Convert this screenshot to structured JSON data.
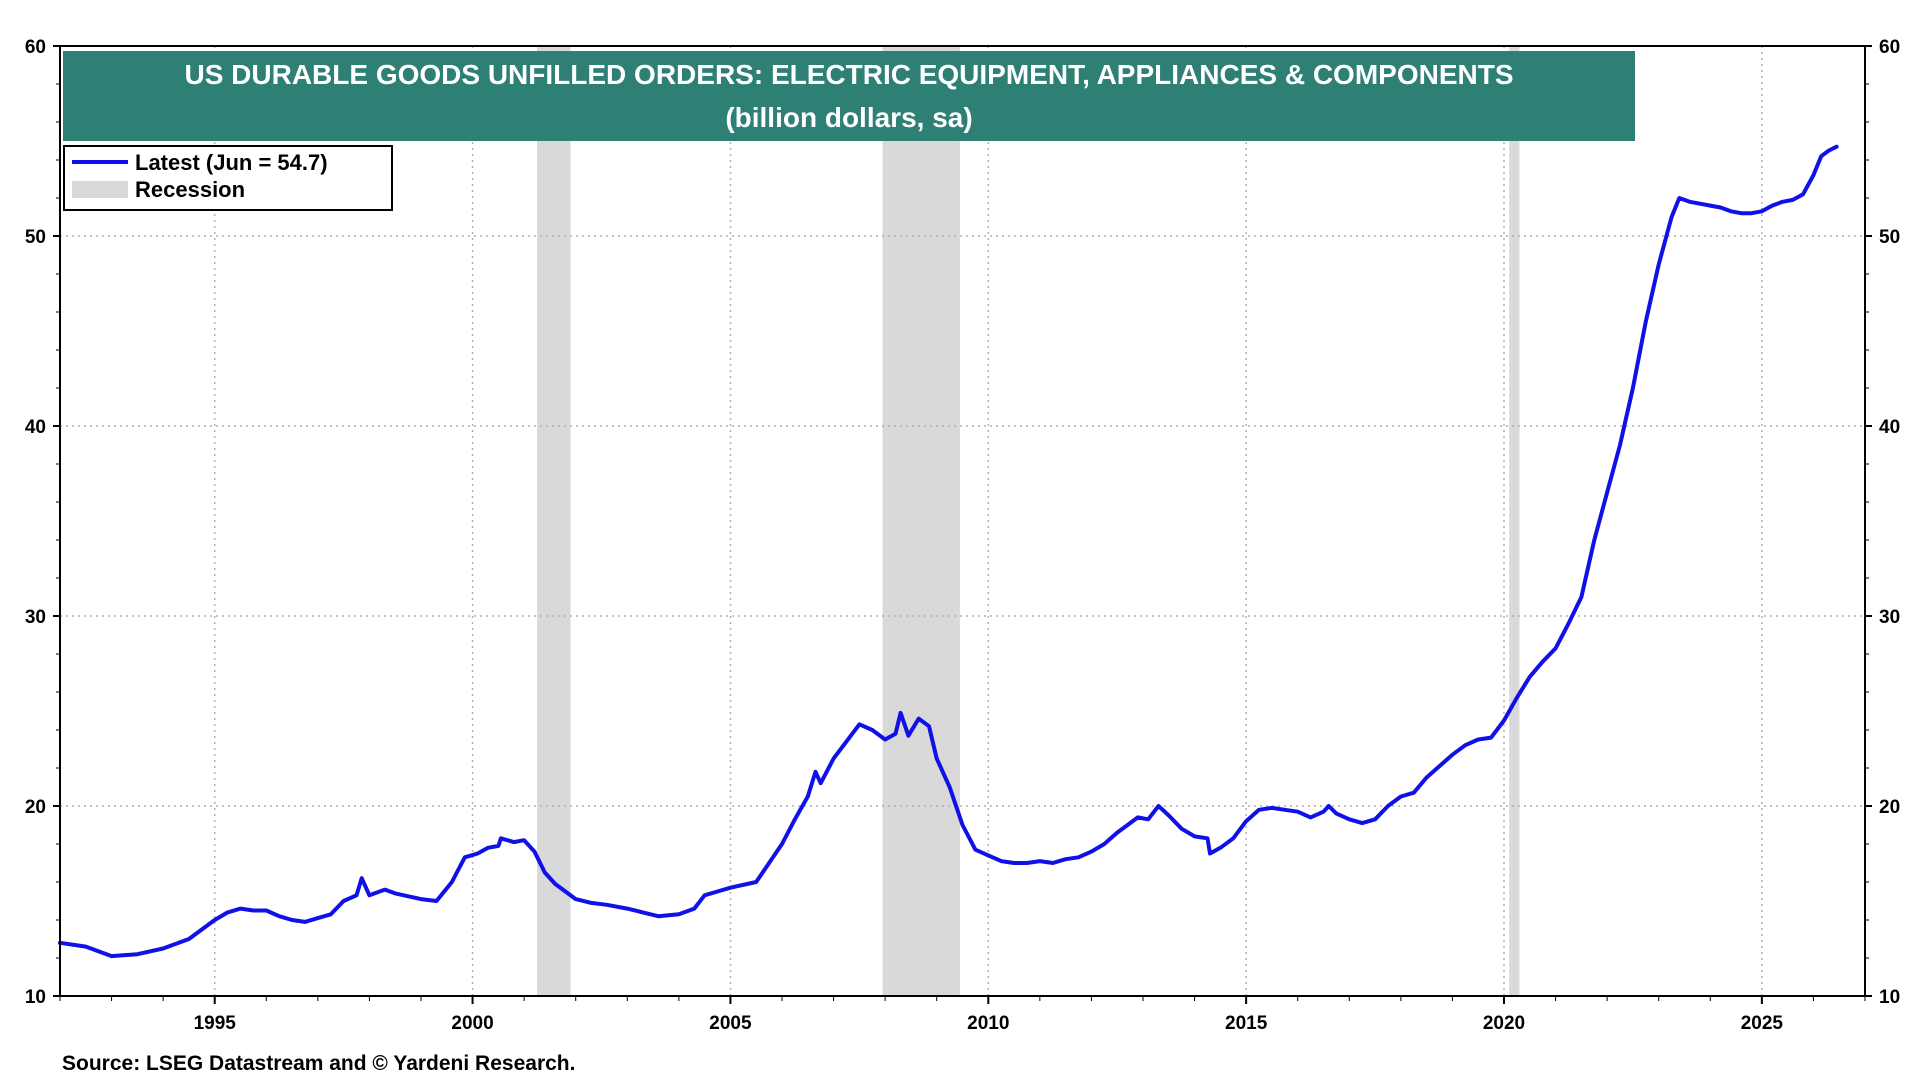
{
  "chart_data": {
    "type": "line",
    "title": "US DURABLE GOODS UNFILLED ORDERS: ELECTRIC EQUIPMENT, APPLIANCES & COMPONENTS",
    "subtitle": "(billion dollars, sa)",
    "source": "Source: LSEG Datastream and © Yardeni Research.",
    "xlim": [
      1992.0,
      2027.0
    ],
    "ylim": [
      10,
      60
    ],
    "y_ticks": [
      10,
      20,
      30,
      40,
      50,
      60
    ],
    "x_ticks": [
      1995,
      2000,
      2005,
      2010,
      2015,
      2020,
      2025
    ],
    "grid": true,
    "legend_position": "top-left",
    "colors": {
      "series": "#1010e8",
      "recession": "#d9d9d9",
      "title_bg": "#2e7f74"
    },
    "series": [
      {
        "name": "Latest (Jun = 54.7)",
        "points": [
          [
            1992.0,
            12.8
          ],
          [
            1992.5,
            12.6
          ],
          [
            1993.0,
            12.1
          ],
          [
            1993.5,
            12.2
          ],
          [
            1994.0,
            12.5
          ],
          [
            1994.5,
            13.0
          ],
          [
            1995.0,
            14.0
          ],
          [
            1995.25,
            14.4
          ],
          [
            1995.5,
            14.6
          ],
          [
            1995.75,
            14.5
          ],
          [
            1996.0,
            14.5
          ],
          [
            1996.25,
            14.2
          ],
          [
            1996.5,
            14.0
          ],
          [
            1996.75,
            13.9
          ],
          [
            1997.0,
            14.1
          ],
          [
            1997.25,
            14.3
          ],
          [
            1997.5,
            15.0
          ],
          [
            1997.75,
            15.3
          ],
          [
            1997.85,
            16.2
          ],
          [
            1998.0,
            15.3
          ],
          [
            1998.3,
            15.6
          ],
          [
            1998.5,
            15.4
          ],
          [
            1999.0,
            15.1
          ],
          [
            1999.3,
            15.0
          ],
          [
            1999.6,
            16.0
          ],
          [
            1999.85,
            17.3
          ],
          [
            2000.1,
            17.5
          ],
          [
            2000.3,
            17.8
          ],
          [
            2000.5,
            17.9
          ],
          [
            2000.55,
            18.3
          ],
          [
            2000.8,
            18.1
          ],
          [
            2001.0,
            18.2
          ],
          [
            2001.2,
            17.6
          ],
          [
            2001.4,
            16.5
          ],
          [
            2001.6,
            15.9
          ],
          [
            2001.8,
            15.5
          ],
          [
            2002.0,
            15.1
          ],
          [
            2002.3,
            14.9
          ],
          [
            2002.6,
            14.8
          ],
          [
            2003.0,
            14.6
          ],
          [
            2003.3,
            14.4
          ],
          [
            2003.6,
            14.2
          ],
          [
            2004.0,
            14.3
          ],
          [
            2004.3,
            14.6
          ],
          [
            2004.5,
            15.3
          ],
          [
            2004.75,
            15.5
          ],
          [
            2005.0,
            15.7
          ],
          [
            2005.5,
            16.0
          ],
          [
            2005.75,
            17.0
          ],
          [
            2006.0,
            18.0
          ],
          [
            2006.25,
            19.3
          ],
          [
            2006.5,
            20.5
          ],
          [
            2006.65,
            21.8
          ],
          [
            2006.75,
            21.2
          ],
          [
            2007.0,
            22.5
          ],
          [
            2007.25,
            23.4
          ],
          [
            2007.5,
            24.3
          ],
          [
            2007.75,
            24.0
          ],
          [
            2008.0,
            23.5
          ],
          [
            2008.2,
            23.8
          ],
          [
            2008.3,
            24.9
          ],
          [
            2008.45,
            23.7
          ],
          [
            2008.65,
            24.6
          ],
          [
            2008.85,
            24.2
          ],
          [
            2009.0,
            22.5
          ],
          [
            2009.25,
            21.0
          ],
          [
            2009.5,
            19.0
          ],
          [
            2009.75,
            17.7
          ],
          [
            2010.0,
            17.4
          ],
          [
            2010.25,
            17.1
          ],
          [
            2010.5,
            17.0
          ],
          [
            2010.75,
            17.0
          ],
          [
            2011.0,
            17.1
          ],
          [
            2011.25,
            17.0
          ],
          [
            2011.5,
            17.2
          ],
          [
            2011.75,
            17.3
          ],
          [
            2012.0,
            17.6
          ],
          [
            2012.25,
            18.0
          ],
          [
            2012.5,
            18.6
          ],
          [
            2012.75,
            19.1
          ],
          [
            2012.9,
            19.4
          ],
          [
            2013.1,
            19.3
          ],
          [
            2013.3,
            20.0
          ],
          [
            2013.5,
            19.5
          ],
          [
            2013.75,
            18.8
          ],
          [
            2014.0,
            18.4
          ],
          [
            2014.25,
            18.3
          ],
          [
            2014.3,
            17.5
          ],
          [
            2014.5,
            17.8
          ],
          [
            2014.75,
            18.3
          ],
          [
            2015.0,
            19.2
          ],
          [
            2015.25,
            19.8
          ],
          [
            2015.5,
            19.9
          ],
          [
            2015.75,
            19.8
          ],
          [
            2016.0,
            19.7
          ],
          [
            2016.25,
            19.4
          ],
          [
            2016.5,
            19.7
          ],
          [
            2016.6,
            20.0
          ],
          [
            2016.75,
            19.6
          ],
          [
            2017.0,
            19.3
          ],
          [
            2017.25,
            19.1
          ],
          [
            2017.5,
            19.3
          ],
          [
            2017.75,
            20.0
          ],
          [
            2018.0,
            20.5
          ],
          [
            2018.25,
            20.7
          ],
          [
            2018.5,
            21.5
          ],
          [
            2018.75,
            22.1
          ],
          [
            2019.0,
            22.7
          ],
          [
            2019.25,
            23.2
          ],
          [
            2019.5,
            23.5
          ],
          [
            2019.75,
            23.6
          ],
          [
            2020.0,
            24.5
          ],
          [
            2020.25,
            25.7
          ],
          [
            2020.5,
            26.8
          ],
          [
            2020.75,
            27.6
          ],
          [
            2021.0,
            28.3
          ],
          [
            2021.25,
            29.6
          ],
          [
            2021.5,
            31.0
          ],
          [
            2021.75,
            34.0
          ],
          [
            2022.0,
            36.5
          ],
          [
            2022.25,
            39.0
          ],
          [
            2022.5,
            42.0
          ],
          [
            2022.75,
            45.5
          ],
          [
            2023.0,
            48.5
          ],
          [
            2023.25,
            51.0
          ],
          [
            2023.4,
            52.0
          ],
          [
            2023.6,
            51.8
          ],
          [
            2023.8,
            51.7
          ],
          [
            2024.0,
            51.6
          ],
          [
            2024.2,
            51.5
          ],
          [
            2024.4,
            51.3
          ],
          [
            2024.6,
            51.2
          ],
          [
            2024.8,
            51.2
          ],
          [
            2025.0,
            51.3
          ],
          [
            2025.2,
            51.6
          ],
          [
            2025.4,
            51.8
          ],
          [
            2025.6,
            51.9
          ],
          [
            2025.8,
            52.2
          ],
          [
            2026.0,
            53.2
          ],
          [
            2026.15,
            54.2
          ],
          [
            2026.3,
            54.5
          ],
          [
            2026.45,
            54.7
          ]
        ]
      }
    ],
    "recessions": [
      [
        2001.25,
        2001.9
      ],
      [
        2007.95,
        2009.45
      ],
      [
        2020.1,
        2020.3
      ]
    ],
    "legend": {
      "series_label": "Latest (Jun = 54.7)",
      "recession_label": "Recession"
    }
  }
}
